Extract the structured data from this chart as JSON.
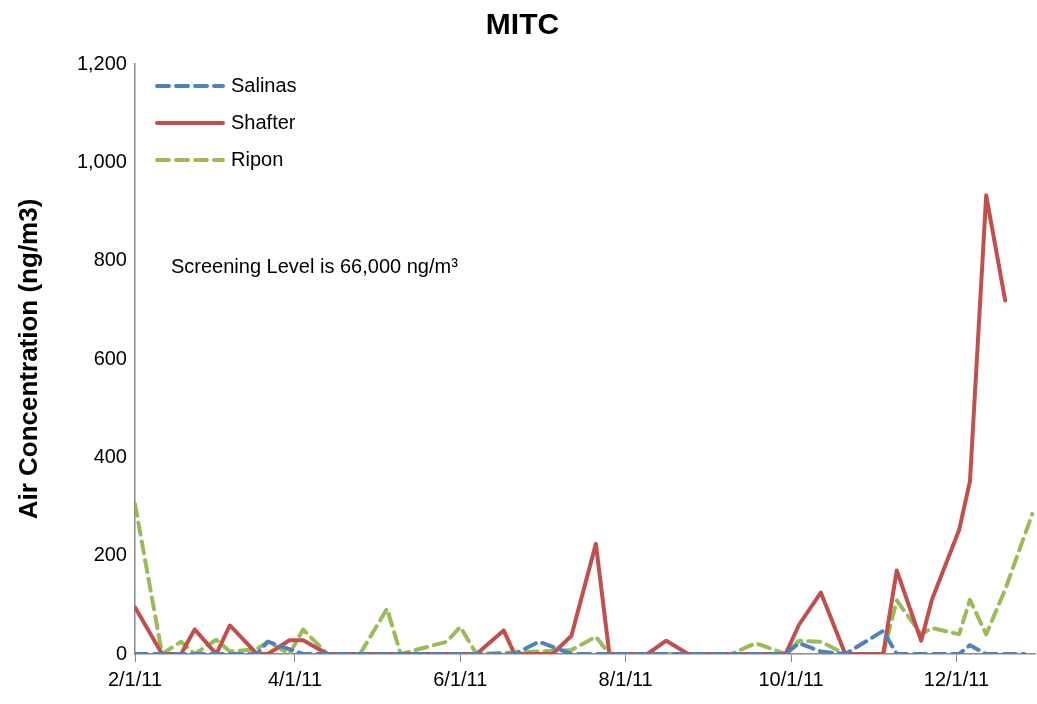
{
  "chart_data": {
    "type": "line",
    "title": "MITC",
    "ylabel": "Air Concentration (ng/m3)",
    "xlim": [
      "2011-02-01",
      "2011-12-30"
    ],
    "xticks": [
      {
        "value": "2011-02-01",
        "label": "2/1/11"
      },
      {
        "value": "2011-04-01",
        "label": "4/1/11"
      },
      {
        "value": "2011-06-01",
        "label": "6/1/11"
      },
      {
        "value": "2011-08-01",
        "label": "8/1/11"
      },
      {
        "value": "2011-10-01",
        "label": "10/1/11"
      },
      {
        "value": "2011-12-01",
        "label": "12/1/11"
      }
    ],
    "ylim": [
      0,
      1200
    ],
    "yticks": [
      0,
      200,
      400,
      600,
      800,
      {
        "value": 1000,
        "label": "1,000"
      },
      {
        "value": 1200,
        "label": "1,200"
      }
    ],
    "grid": false,
    "legend": "top left",
    "marker": "none",
    "annotations": [
      "Screening Level is 66,000 ng/m³"
    ],
    "series": [
      {
        "name": "Salinas",
        "color": "#4f81bd",
        "line_style": "dashed",
        "x": [
          "2011-02-01",
          "2011-03-18",
          "2011-03-22",
          "2011-04-04",
          "2011-06-21",
          "2011-06-30",
          "2011-07-12",
          "2011-09-29",
          "2011-10-04",
          "2011-10-12",
          "2011-10-21",
          "2011-11-04",
          "2011-11-09",
          "2011-12-02",
          "2011-12-06",
          "2011-12-12",
          "2011-12-26"
        ],
        "values": [
          0,
          0,
          25,
          0,
          0,
          25,
          0,
          0,
          22,
          5,
          0,
          47,
          0,
          0,
          18,
          0,
          0
        ]
      },
      {
        "name": "Shafter",
        "color": "#c0504d",
        "line_style": "solid",
        "x": [
          "2011-02-01",
          "2011-02-11",
          "2011-02-18",
          "2011-02-23",
          "2011-03-03",
          "2011-03-08",
          "2011-03-18",
          "2011-03-22",
          "2011-03-30",
          "2011-04-04",
          "2011-04-13",
          "2011-06-07",
          "2011-06-17",
          "2011-06-21",
          "2011-07-05",
          "2011-07-12",
          "2011-07-21",
          "2011-07-26",
          "2011-08-09",
          "2011-08-16",
          "2011-08-24",
          "2011-09-29",
          "2011-10-04",
          "2011-10-12",
          "2011-10-21",
          "2011-11-04",
          "2011-11-09",
          "2011-11-18",
          "2011-11-22",
          "2011-12-02",
          "2011-12-06",
          "2011-12-12",
          "2011-12-19"
        ],
        "values": [
          95,
          0,
          0,
          50,
          0,
          58,
          0,
          0,
          28,
          28,
          0,
          0,
          48,
          0,
          0,
          37,
          224,
          0,
          0,
          27,
          0,
          0,
          60,
          125,
          0,
          0,
          170,
          27,
          111,
          252,
          351,
          933,
          719
        ]
      },
      {
        "name": "Ripon",
        "color": "#9bbb59",
        "line_style": "dashed",
        "x": [
          "2011-02-01",
          "2011-02-11",
          "2011-02-18",
          "2011-02-23",
          "2011-03-03",
          "2011-03-08",
          "2011-03-18",
          "2011-03-22",
          "2011-03-30",
          "2011-04-04",
          "2011-04-13",
          "2011-04-25",
          "2011-05-05",
          "2011-05-10",
          "2011-05-27",
          "2011-06-01",
          "2011-06-07",
          "2011-07-12",
          "2011-07-21",
          "2011-07-26",
          "2011-09-09",
          "2011-09-18",
          "2011-09-29",
          "2011-10-04",
          "2011-10-12",
          "2011-10-21",
          "2011-11-04",
          "2011-11-09",
          "2011-11-18",
          "2011-11-22",
          "2011-12-02",
          "2011-12-06",
          "2011-12-12",
          "2011-12-19",
          "2011-12-29"
        ],
        "values": [
          305,
          0,
          25,
          0,
          29,
          5,
          10,
          25,
          0,
          50,
          0,
          0,
          92,
          0,
          25,
          55,
          0,
          8,
          35,
          0,
          0,
          22,
          0,
          27,
          25,
          0,
          0,
          109,
          40,
          53,
          40,
          110,
          40,
          131,
          285
        ]
      }
    ]
  }
}
